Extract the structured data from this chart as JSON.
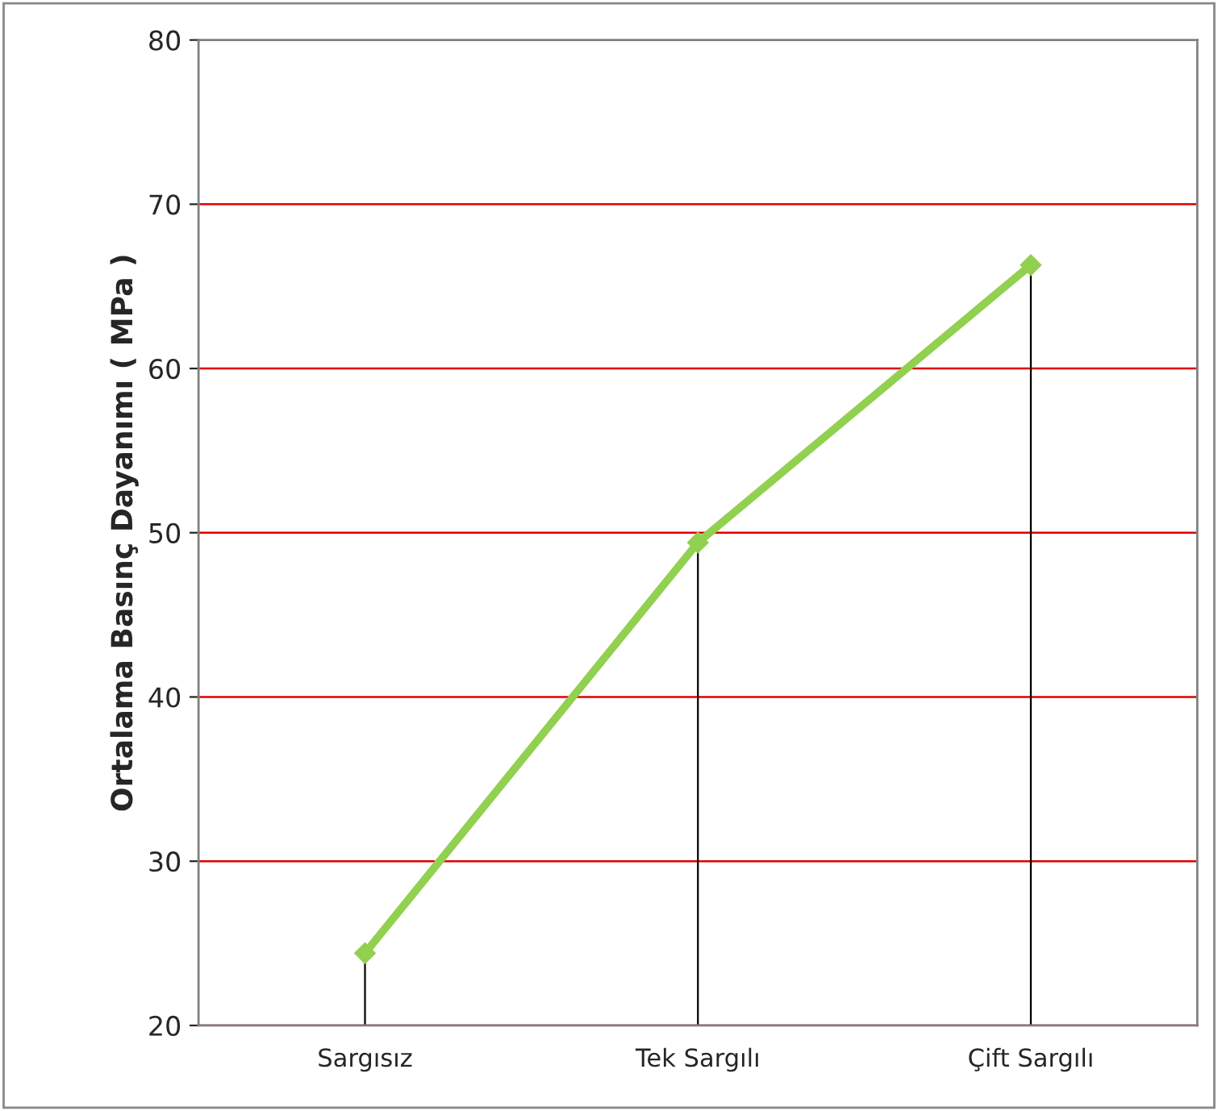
{
  "chart_data": {
    "type": "line",
    "ylabel": "Ortalama Basınç Dayanımı ( MPa )",
    "categories": [
      "Sargısız",
      "Tek Sargılı",
      "Çift Sargılı"
    ],
    "series": [
      {
        "color": "#92d050",
        "values": [
          24.4,
          49.4,
          66.3
        ],
        "errors": [
          [
            20,
            24.4
          ],
          [
            20,
            49.4
          ],
          [
            20,
            66.3
          ]
        ]
      }
    ],
    "ylim": [
      20,
      80
    ],
    "yticks": [
      20,
      30,
      40,
      50,
      60,
      70,
      80
    ],
    "grid": "y",
    "marker": "diamond",
    "line_style": "solid"
  }
}
